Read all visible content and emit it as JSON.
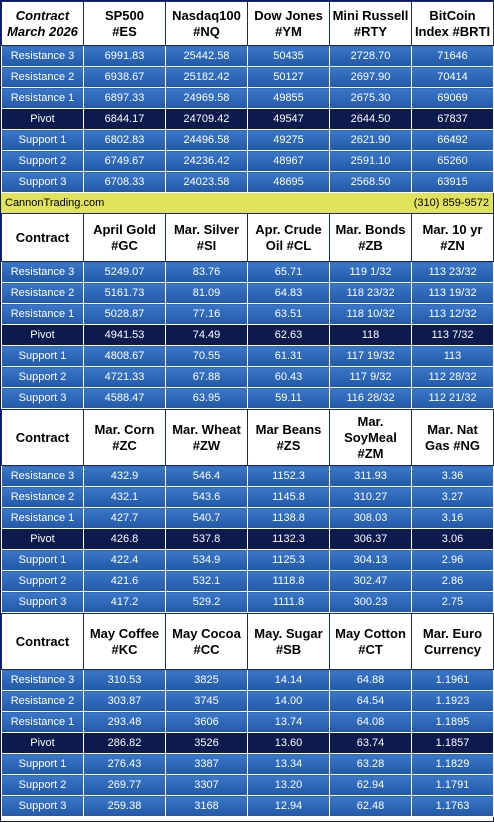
{
  "levels": [
    "Resistance 3",
    "Resistance 2",
    "Resistance 1",
    "Pivot",
    "Support 1",
    "Support 2",
    "Support 3"
  ],
  "banner": {
    "site": "CannonTrading.com",
    "phone": "(310) 859-9572"
  },
  "sections": [
    {
      "corner": [
        "Contract",
        "March 2026"
      ],
      "headers": [
        [
          "SP500",
          "#ES"
        ],
        [
          "Nasdaq100",
          "#NQ"
        ],
        [
          "Dow Jones",
          "#YM"
        ],
        [
          "Mini Russell",
          "#RTY"
        ],
        [
          "BitCoin",
          "Index #BRTI"
        ]
      ],
      "rows": [
        [
          "6991.83",
          "25442.58",
          "50435",
          "2728.70",
          "71646"
        ],
        [
          "6938.67",
          "25182.42",
          "50127",
          "2697.90",
          "70414"
        ],
        [
          "6897.33",
          "24969.58",
          "49855",
          "2675.30",
          "69069"
        ],
        [
          "6844.17",
          "24709.42",
          "49547",
          "2644.50",
          "67837"
        ],
        [
          "6802.83",
          "24496.58",
          "49275",
          "2621.90",
          "66492"
        ],
        [
          "6749.67",
          "24236.42",
          "48967",
          "2591.10",
          "65260"
        ],
        [
          "6708.33",
          "24023.58",
          "48695",
          "2568.50",
          "63915"
        ]
      ]
    },
    {
      "corner": [
        "Contract"
      ],
      "headers": [
        [
          "April Gold",
          "#GC"
        ],
        [
          "Mar. Silver",
          "#SI"
        ],
        [
          "Apr. Crude",
          "Oil #CL"
        ],
        [
          "Mar. Bonds",
          "#ZB"
        ],
        [
          "Mar. 10 yr",
          "#ZN"
        ]
      ],
      "rows": [
        [
          "5249.07",
          "83.76",
          "65.71",
          "119  1/32",
          "113 23/32"
        ],
        [
          "5161.73",
          "81.09",
          "64.83",
          "118 23/32",
          "113 19/32"
        ],
        [
          "5028.87",
          "77.16",
          "63.51",
          "118 10/32",
          "113 12/32"
        ],
        [
          "4941.53",
          "74.49",
          "62.63",
          "118",
          "113  7/32"
        ],
        [
          "4808.67",
          "70.55",
          "61.31",
          "117 19/32",
          "113"
        ],
        [
          "4721.33",
          "67.88",
          "60.43",
          "117  9/32",
          "112 28/32"
        ],
        [
          "4588.47",
          "63.95",
          "59.11",
          "116 28/32",
          "112 21/32"
        ]
      ]
    },
    {
      "corner": [
        "Contract"
      ],
      "headers": [
        [
          "Mar. Corn",
          "#ZC"
        ],
        [
          "Mar.  Wheat",
          "#ZW"
        ],
        [
          "Mar Beans",
          "#ZS"
        ],
        [
          "Mar.",
          "SoyMeal",
          "#ZM"
        ],
        [
          "Mar. Nat",
          "Gas #NG"
        ]
      ],
      "rows": [
        [
          "432.9",
          "546.4",
          "1152.3",
          "311.93",
          "3.36"
        ],
        [
          "432.1",
          "543.6",
          "1145.8",
          "310.27",
          "3.27"
        ],
        [
          "427.7",
          "540.7",
          "1138.8",
          "308.03",
          "3.16"
        ],
        [
          "426.8",
          "537.8",
          "1132.3",
          "306.37",
          "3.06"
        ],
        [
          "422.4",
          "534.9",
          "1125.3",
          "304.13",
          "2.96"
        ],
        [
          "421.6",
          "532.1",
          "1118.8",
          "302.47",
          "2.86"
        ],
        [
          "417.2",
          "529.2",
          "1111.8",
          "300.23",
          "2.75"
        ]
      ]
    },
    {
      "corner": [
        "Contract"
      ],
      "headers": [
        [
          "May Coffee",
          "#KC"
        ],
        [
          "May Cocoa",
          "#CC"
        ],
        [
          "May. Sugar",
          "#SB"
        ],
        [
          "May Cotton",
          "#CT"
        ],
        [
          "Mar. Euro",
          "Currency"
        ]
      ],
      "rows": [
        [
          "310.53",
          "3825",
          "14.14",
          "64.88",
          "1.1961"
        ],
        [
          "303.87",
          "3745",
          "14.00",
          "64.54",
          "1.1923"
        ],
        [
          "293.48",
          "3606",
          "13.74",
          "64.08",
          "1.1895"
        ],
        [
          "286.82",
          "3526",
          "13.60",
          "63.74",
          "1.1857"
        ],
        [
          "276.43",
          "3387",
          "13.34",
          "63.28",
          "1.1829"
        ],
        [
          "269.77",
          "3307",
          "13.20",
          "62.94",
          "1.1791"
        ],
        [
          "259.38",
          "3168",
          "12.94",
          "62.48",
          "1.1763"
        ]
      ]
    }
  ]
}
